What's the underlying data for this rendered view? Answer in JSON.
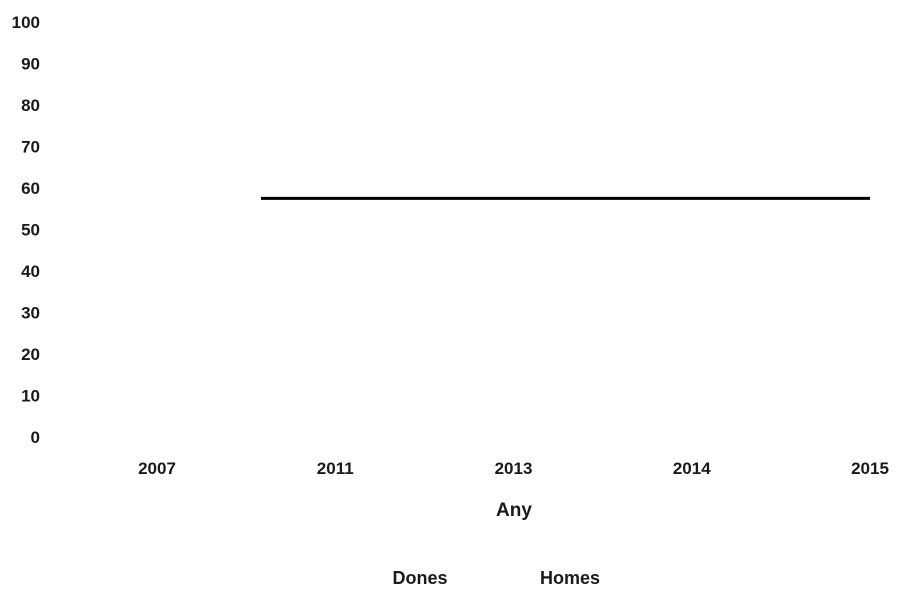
{
  "chart_data": {
    "type": "line",
    "categories": [
      "2007",
      "2011",
      "2013",
      "2014",
      "2015"
    ],
    "ylim": [
      0,
      100
    ],
    "yticks": [
      0,
      10,
      20,
      30,
      40,
      50,
      60,
      70,
      80,
      90,
      100
    ],
    "xlabel": "Any",
    "ylabel": "",
    "grid": false,
    "legend_position": "bottom",
    "series": [
      {
        "name": "Dones",
        "color": "#ffffff",
        "values": [
          null,
          null,
          null,
          null,
          null
        ]
      },
      {
        "name": "Homes",
        "color": "#000000",
        "values": [
          57.5,
          57.5,
          57.5,
          57.5,
          57.5
        ]
      }
    ]
  }
}
